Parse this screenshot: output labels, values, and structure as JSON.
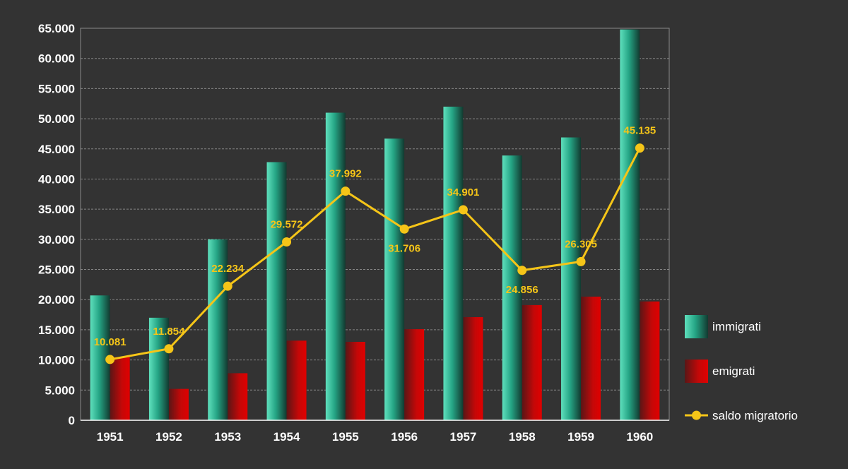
{
  "chart_data": {
    "type": "bar",
    "title": "",
    "xlabel": "",
    "ylabel": "",
    "categories": [
      "1951",
      "1952",
      "1953",
      "1954",
      "1955",
      "1956",
      "1957",
      "1958",
      "1959",
      "1960"
    ],
    "ylim": [
      0,
      65000
    ],
    "y_ticks": [
      0,
      5000,
      10000,
      15000,
      20000,
      25000,
      30000,
      35000,
      40000,
      45000,
      50000,
      55000,
      60000,
      65000
    ],
    "y_tick_labels": [
      "0",
      "5.000",
      "10.000",
      "15.000",
      "20.000",
      "25.000",
      "30.000",
      "35.000",
      "40.000",
      "45.000",
      "50.000",
      "55.000",
      "60.000",
      "65.000"
    ],
    "grid": true,
    "legend_position": "right",
    "series": [
      {
        "name": "immigrati",
        "type": "bar",
        "color": "#2fbf9b",
        "values": [
          20700,
          17000,
          30000,
          42800,
          51000,
          46700,
          52000,
          43900,
          46900,
          64800
        ]
      },
      {
        "name": "emigrati",
        "type": "bar",
        "color": "#d40000",
        "values": [
          10500,
          5200,
          7800,
          13200,
          13000,
          15100,
          17100,
          19100,
          20500,
          19700
        ]
      },
      {
        "name": "saldo migratorio",
        "type": "line",
        "color": "#f5c518",
        "values": [
          10081,
          11854,
          22234,
          29572,
          37992,
          31706,
          34901,
          24856,
          26305,
          45135
        ],
        "labels": [
          "10.081",
          "11.854",
          "22.234",
          "29.572",
          "37.992",
          "31.706",
          "34.901",
          "24.856",
          "26.305",
          "45.135"
        ]
      }
    ]
  }
}
